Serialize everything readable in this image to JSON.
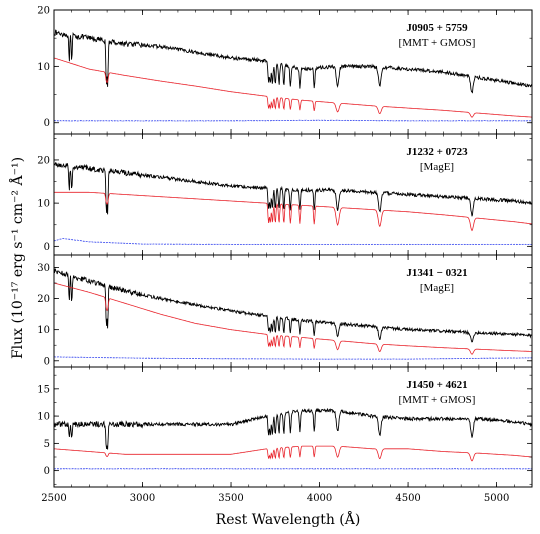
{
  "chart_data": {
    "type": "line",
    "xlabel": "Rest Wavelength (Å)",
    "ylabel": "Flux (10⁻¹⁷ erg s⁻¹ cm⁻² Å⁻¹)",
    "xlim": [
      2500,
      5200
    ],
    "x_ticks": [
      2500,
      3000,
      3500,
      4000,
      4500,
      5000
    ],
    "colors": {
      "observed": "#000000",
      "model": "#e8222a",
      "error": "#3344ee"
    },
    "panels": [
      {
        "name": "J0905 + 5759",
        "instrument": "[MMT + GMOS]",
        "ylim": [
          -2,
          20
        ],
        "y_ticks": [
          0,
          10,
          20
        ],
        "series": [
          {
            "role": "observed",
            "x": [
              2500,
              2700,
              2900,
              3100,
              3300,
              3500,
              3700,
              3900,
              4100,
              4300,
              4500,
              4700,
              4900,
              5100,
              5200
            ],
            "values": [
              16,
              15,
              14,
              13.5,
              12.5,
              11.5,
              11,
              9.5,
              10,
              10,
              9.5,
              9,
              8,
              7,
              6.5
            ]
          },
          {
            "role": "model",
            "x": [
              2500,
              2700,
              2900,
              3100,
              3300,
              3500,
              3700,
              3900,
              4100,
              4300,
              4500,
              4700,
              4900,
              5100,
              5200
            ],
            "values": [
              11.5,
              9.5,
              8.4,
              7.4,
              6.5,
              5.5,
              4.7,
              4.0,
              3.5,
              3.0,
              2.6,
              2.2,
              1.7,
              1.2,
              1.0
            ]
          },
          {
            "role": "error",
            "x": [
              2500,
              3000,
              3500,
              4000,
              4500,
              5000,
              5200
            ],
            "values": [
              0.3,
              0.3,
              0.3,
              0.4,
              0.3,
              0.3,
              0.3
            ]
          }
        ]
      },
      {
        "name": "J1232 + 0723",
        "instrument": "[MagE]",
        "ylim": [
          -2,
          26
        ],
        "y_ticks": [
          0,
          10,
          20
        ],
        "series": [
          {
            "role": "observed",
            "x": [
              2500,
              2700,
              2900,
              3100,
              3300,
              3500,
              3700,
              3900,
              4100,
              4300,
              4500,
              4700,
              4900,
              5100,
              5200
            ],
            "values": [
              19,
              18,
              17,
              16,
              15,
              14,
              13.5,
              13,
              13,
              12.5,
              12,
              11.5,
              11,
              10.5,
              10
            ]
          },
          {
            "role": "model",
            "x": [
              2500,
              2700,
              2900,
              3100,
              3300,
              3500,
              3700,
              3900,
              4100,
              4300,
              4500,
              4700,
              4900,
              5100,
              5200
            ],
            "values": [
              12.5,
              12.5,
              12,
              11.5,
              11,
              10.5,
              10,
              9.5,
              9,
              8.5,
              8,
              7.3,
              6.5,
              5.7,
              5.2
            ]
          },
          {
            "role": "error",
            "x": [
              2500,
              2550,
              2700,
              3000,
              3500,
              4000,
              4500,
              5000,
              5200
            ],
            "values": [
              1.2,
              1.8,
              1.0,
              0.5,
              0.4,
              0.4,
              0.4,
              0.4,
              0.4
            ]
          }
        ]
      },
      {
        "name": "J1341 − 0321",
        "instrument": "[MagE]",
        "ylim": [
          -2,
          34
        ],
        "y_ticks": [
          0,
          10,
          20,
          30
        ],
        "series": [
          {
            "role": "observed",
            "x": [
              2500,
              2700,
              2900,
              3100,
              3300,
              3500,
              3700,
              3900,
              4100,
              4300,
              4500,
              4700,
              4900,
              5100,
              5200
            ],
            "values": [
              29,
              25.5,
              22.5,
              20,
              18,
              16,
              14.5,
              13,
              12,
              11,
              10,
              9.5,
              9,
              8.5,
              8
            ]
          },
          {
            "role": "model",
            "x": [
              2500,
              2700,
              2900,
              3100,
              3300,
              3500,
              3700,
              3900,
              4100,
              4300,
              4500,
              4700,
              4900,
              5100,
              5200
            ],
            "values": [
              25,
              22,
              18.5,
              15,
              12,
              10,
              8.5,
              7.5,
              6.5,
              5.5,
              4.8,
              4.2,
              3.7,
              3.2,
              3
            ]
          },
          {
            "role": "error",
            "x": [
              2500,
              3000,
              3500,
              4000,
              4500,
              5000,
              5200
            ],
            "values": [
              1.2,
              0.8,
              0.6,
              0.5,
              0.5,
              0.8,
              0.9
            ]
          }
        ]
      },
      {
        "name": "J1450 + 4621",
        "instrument": "[MMT + GMOS]",
        "ylim": [
          -3,
          19
        ],
        "y_ticks": [
          0,
          5,
          10,
          15
        ],
        "series": [
          {
            "role": "observed",
            "x": [
              2500,
              2700,
              2900,
              3100,
              3300,
              3500,
              3700,
              3900,
              4100,
              4300,
              4500,
              4700,
              4900,
              5100,
              5200
            ],
            "values": [
              8.5,
              8.5,
              8.5,
              8.5,
              8.5,
              8.5,
              10,
              11,
              11,
              10,
              9.5,
              9.5,
              9.5,
              9,
              8.5
            ]
          },
          {
            "role": "model",
            "x": [
              2500,
              2700,
              2900,
              3100,
              3300,
              3500,
              3700,
              3900,
              4100,
              4300,
              4500,
              4700,
              4900,
              5100,
              5200
            ],
            "values": [
              4,
              3.5,
              3,
              3,
              3,
              3,
              4,
              4.5,
              4.5,
              4,
              4,
              3.5,
              3.2,
              2.8,
              2.5
            ]
          },
          {
            "role": "error",
            "x": [
              2500,
              3000,
              3500,
              4000,
              4500,
              5000,
              5200
            ],
            "values": [
              0.3,
              0.3,
              0.3,
              0.3,
              0.3,
              0.3,
              0.3
            ]
          }
        ]
      }
    ]
  }
}
